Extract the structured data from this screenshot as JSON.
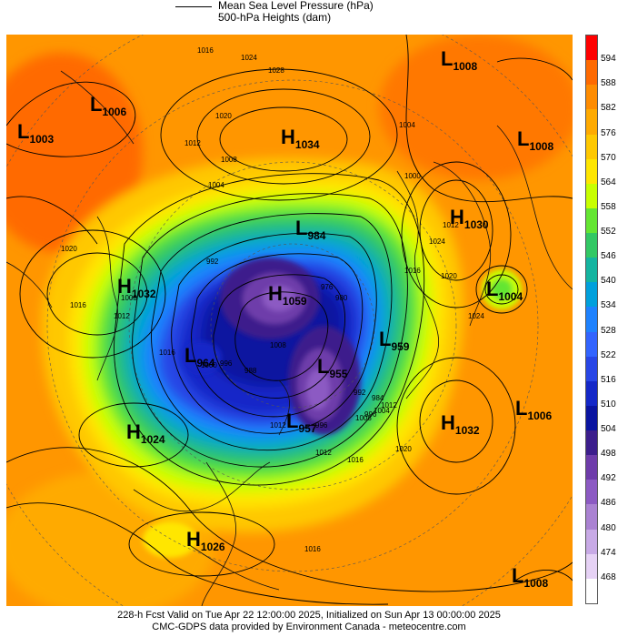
{
  "legend": {
    "mslp_label": "Mean Sea Level Pressure (hPa)",
    "heights_label": "500-hPa Heights (dam)"
  },
  "colorbar": {
    "levels": [
      "594",
      "588",
      "582",
      "576",
      "570",
      "564",
      "558",
      "552",
      "546",
      "540",
      "534",
      "528",
      "522",
      "516",
      "510",
      "504",
      "498",
      "492",
      "486",
      "480",
      "474",
      "468"
    ],
    "colors": [
      "#ff0000",
      "#ff6a00",
      "#ff8c00",
      "#ffaa00",
      "#ffc800",
      "#ffe600",
      "#c8ff00",
      "#64e632",
      "#32c864",
      "#14b4a0",
      "#00a0dc",
      "#1e82ff",
      "#3264ff",
      "#2846e6",
      "#1428c8",
      "#0a14a0",
      "#3c1e8c",
      "#6e3caa",
      "#8c5ac3",
      "#aa82d2",
      "#c8aae6",
      "#e6d2f5",
      "#ffffff"
    ]
  },
  "systems": [
    {
      "type": "L",
      "value": "1008"
    },
    {
      "type": "L",
      "value": "1006"
    },
    {
      "type": "L",
      "value": "1003"
    },
    {
      "type": "H",
      "value": "1034"
    },
    {
      "type": "L",
      "value": "1008"
    },
    {
      "type": "H",
      "value": "1030"
    },
    {
      "type": "H",
      "value": "1032"
    },
    {
      "type": "L",
      "value": "1004"
    },
    {
      "type": "L",
      "value": "984"
    },
    {
      "type": "H",
      "value": "1059"
    },
    {
      "type": "L",
      "value": "964"
    },
    {
      "type": "L",
      "value": "955"
    },
    {
      "type": "L",
      "value": "959"
    },
    {
      "type": "L",
      "value": "957"
    },
    {
      "type": "H",
      "value": "1024"
    },
    {
      "type": "H",
      "value": "1032"
    },
    {
      "type": "L",
      "value": "1006"
    },
    {
      "type": "H",
      "value": "1026"
    },
    {
      "type": "L",
      "value": "1008"
    }
  ],
  "isobar_labels": [
    "1016",
    "1024",
    "1028",
    "1020",
    "1012",
    "1008",
    "1004",
    "992",
    "1020",
    "1024",
    "1016",
    "1012",
    "1008",
    "1016",
    "1004",
    "1000",
    "1012",
    "1016",
    "1020",
    "1024",
    "996",
    "1000",
    "988",
    "1008",
    "1012",
    "996",
    "980",
    "976",
    "992",
    "984",
    "996",
    "1012",
    "1016",
    "1020",
    "1004",
    "1008",
    "1012",
    "1016"
  ],
  "footer": {
    "line1": "228-h Fcst Valid on Tue Apr 22 12:00:00 2025, Initialized on Sun Apr 13 00:00:00 2025",
    "line2": "CMC-GDPS data provided by Environment Canada - meteocentre.com"
  }
}
